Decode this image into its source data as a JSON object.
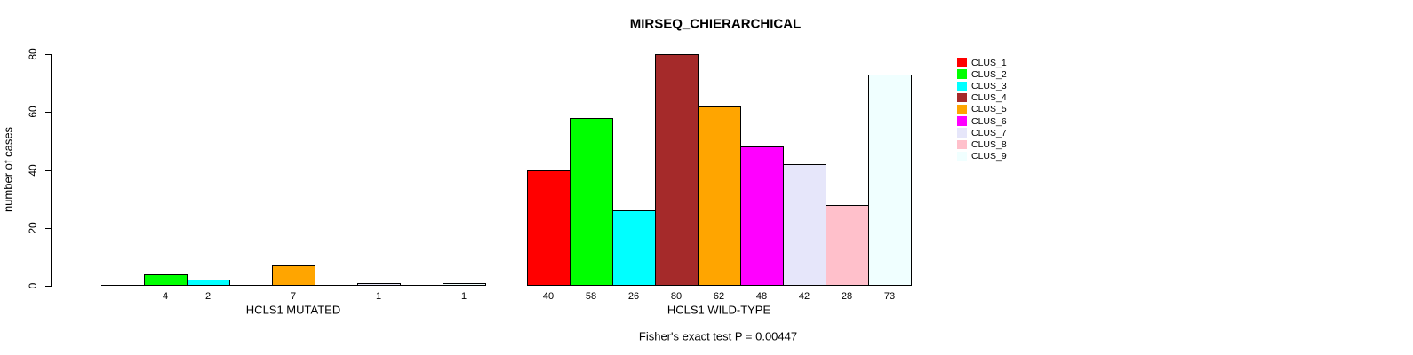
{
  "background": "#FFFFFF",
  "text_color": "#000000",
  "axis_color": "#000000",
  "chart_data": {
    "type": "bar",
    "title": "MIRSEQ_CHIERARCHICAL",
    "ylabel": "number of cases",
    "xlabel": "",
    "ylim": [
      0,
      80
    ],
    "yticks": [
      0,
      20,
      40,
      60,
      80
    ],
    "grid": false,
    "legend_position": "right-inside",
    "categories": [
      "CLUS_1",
      "CLUS_2",
      "CLUS_3",
      "CLUS_4",
      "CLUS_5",
      "CLUS_6",
      "CLUS_7",
      "CLUS_8",
      "CLUS_9"
    ],
    "colors": [
      "#FF0000",
      "#00FF00",
      "#00FFFF",
      "#A52A2A",
      "#FFA500",
      "#FF00FF",
      "#E6E6FA",
      "#FFC0CB",
      "#F0FFFF"
    ],
    "groups": [
      {
        "label": "HCLS1 MUTATED",
        "values": [
          0,
          4,
          2,
          0,
          7,
          0,
          1,
          0,
          1
        ]
      },
      {
        "label": "HCLS1 WILD-TYPE",
        "values": [
          40,
          58,
          26,
          80,
          62,
          48,
          42,
          28,
          73
        ]
      }
    ],
    "annotation": "Fisher's exact test P = 0.00447"
  }
}
